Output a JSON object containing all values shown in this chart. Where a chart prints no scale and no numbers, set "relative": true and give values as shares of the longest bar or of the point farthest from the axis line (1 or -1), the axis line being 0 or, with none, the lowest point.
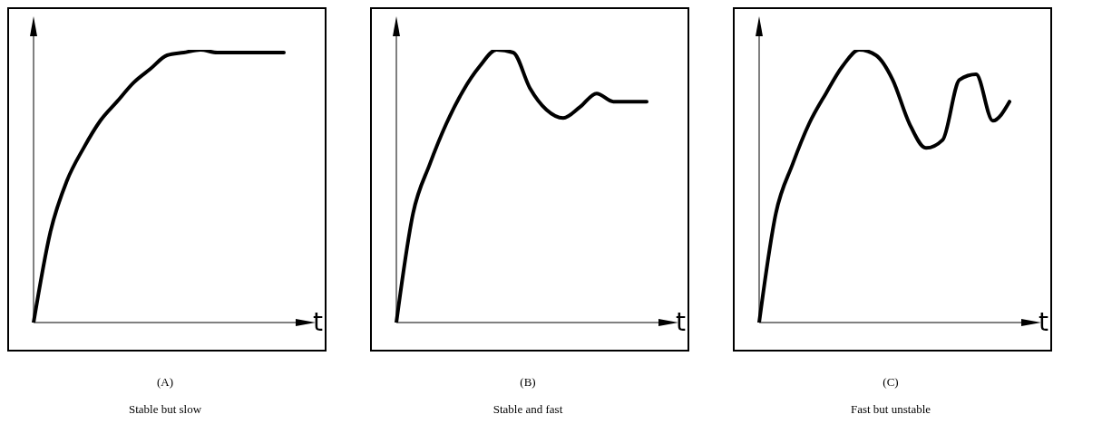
{
  "chart_data": [
    {
      "type": "line",
      "relative": true,
      "title": "(A)",
      "subtitle": "Stable but slow",
      "xlabel": "t",
      "color": "#000000",
      "categories": [
        null,
        null,
        null,
        null,
        null,
        null,
        null,
        null,
        null,
        null,
        null,
        null,
        null,
        null,
        null,
        null
      ],
      "values": [
        0,
        0.33,
        0.52,
        0.64,
        0.74,
        0.81,
        0.88,
        0.93,
        0.98,
        0.99,
        1,
        0.99,
        0.99,
        0.99,
        0.99,
        0.99
      ]
    },
    {
      "type": "line",
      "relative": true,
      "title": "(B)",
      "subtitle": "Stable and fast",
      "xlabel": "t",
      "color": "#000000",
      "categories": [
        null,
        null,
        null,
        null,
        null,
        null,
        null,
        null,
        null,
        null,
        null,
        null,
        null,
        null,
        null,
        null
      ],
      "values": [
        0,
        0.4,
        0.58,
        0.73,
        0.85,
        0.94,
        1,
        0.99,
        0.86,
        0.78,
        0.75,
        0.79,
        0.84,
        0.81,
        0.81,
        0.81
      ]
    },
    {
      "type": "line",
      "relative": true,
      "title": "(C)",
      "subtitle": "Fast but unstable",
      "xlabel": "t",
      "color": "#000000",
      "categories": [
        null,
        null,
        null,
        null,
        null,
        null,
        null,
        null,
        null,
        null,
        null,
        null,
        null,
        null,
        null,
        null
      ],
      "values": [
        0,
        0.4,
        0.58,
        0.73,
        0.84,
        0.94,
        1,
        0.98,
        0.89,
        0.73,
        0.64,
        0.67,
        0.89,
        0.91,
        0.74,
        0.81
      ]
    }
  ]
}
